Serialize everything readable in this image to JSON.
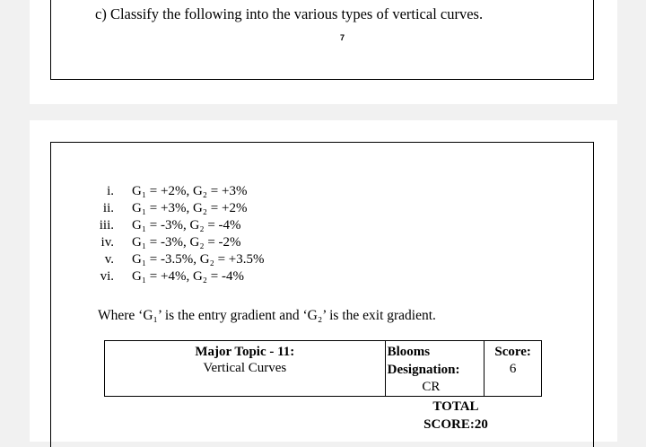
{
  "question": {
    "title": "c) Classify the following into the various types of vertical curves.",
    "page_number": "7"
  },
  "cases": [
    {
      "num": "i.",
      "text": "G₁ = +2%, G₂ = +3%"
    },
    {
      "num": "ii.",
      "text": "G₁ = +3%, G₂ = +2%"
    },
    {
      "num": "iii.",
      "text": "G₁ = -3%, G₂ = -4%"
    },
    {
      "num": "iv.",
      "text": "G₁ = -3%, G₂ = -2%"
    },
    {
      "num": "v.",
      "text": "G₁ = -3.5%, G₂ = +3.5%"
    },
    {
      "num": "vi.",
      "text": "G₁ = +4%, G₂ = -4%"
    }
  ],
  "note": "Where ‘G₁’ is the entry gradient and ‘G₂’ is the exit gradient.",
  "info_table": {
    "topic_title": "Major Topic - 11:",
    "topic_subtitle": "Vertical Curves",
    "blooms_title": "Blooms",
    "blooms_label": "Designation:",
    "blooms_value": "CR",
    "score_label": "Score:",
    "score_value": "6"
  },
  "total": {
    "line1": "TOTAL",
    "line2": "SCORE:20"
  }
}
